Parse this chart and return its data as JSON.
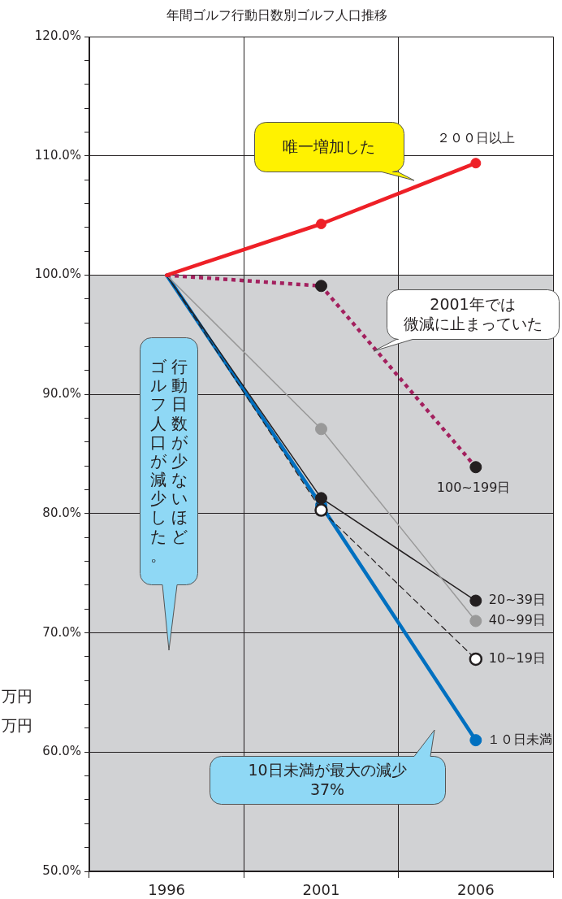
{
  "chart_data": {
    "type": "line",
    "title": "年間ゴルフ行動日数別ゴルフ人口推移",
    "categories": [
      "1996",
      "2001",
      "2006"
    ],
    "series": [
      {
        "name": "２００日以上",
        "color": "#ee2027",
        "values": [
          100,
          104.3,
          109.4
        ]
      },
      {
        "name": "100~199日",
        "color": "#a3205e",
        "values": [
          100,
          99.1,
          83.9
        ],
        "line_style": "dotted"
      },
      {
        "name": "40~99日",
        "color": "#999999",
        "values": [
          100,
          87.1,
          71.0
        ]
      },
      {
        "name": "20~39日",
        "color": "#231f20",
        "values": [
          100,
          81.3,
          72.7
        ]
      },
      {
        "name": "10~19日",
        "color": "#231f20",
        "values": [
          100,
          80.3,
          67.8
        ],
        "line_style": "dashed"
      },
      {
        "name": "１０日未満",
        "color": "#0070c0",
        "values": [
          100,
          80.7,
          61.0
        ]
      }
    ],
    "ylim": [
      50,
      120
    ],
    "yticks": [
      {
        "value": 50,
        "label": "50.0%"
      },
      {
        "value": 52,
        "label": null
      },
      {
        "value": 54,
        "label": null
      },
      {
        "value": 56,
        "label": null
      },
      {
        "value": 58,
        "label": null
      },
      {
        "value": 60,
        "label": "60.0%"
      },
      {
        "value": 62,
        "label": null
      },
      {
        "value": 64,
        "label": null
      },
      {
        "value": 66,
        "label": null
      },
      {
        "value": 68,
        "label": null
      },
      {
        "value": 70,
        "label": "70.0%"
      },
      {
        "value": 72,
        "label": null
      },
      {
        "value": 74,
        "label": null
      },
      {
        "value": 76,
        "label": null
      },
      {
        "value": 78,
        "label": null
      },
      {
        "value": 80,
        "label": "80.0%"
      },
      {
        "value": 82,
        "label": null
      },
      {
        "value": 84,
        "label": null
      },
      {
        "value": 86,
        "label": null
      },
      {
        "value": 88,
        "label": null
      },
      {
        "value": 90,
        "label": "90.0%"
      },
      {
        "value": 92,
        "label": null
      },
      {
        "value": 94,
        "label": null
      },
      {
        "value": 96,
        "label": null
      },
      {
        "value": 98,
        "label": null
      },
      {
        "value": 100,
        "label": "100.0%"
      },
      {
        "value": 102,
        "label": null
      },
      {
        "value": 104,
        "label": null
      },
      {
        "value": 106,
        "label": null
      },
      {
        "value": 108,
        "label": null
      },
      {
        "value": 110,
        "label": "110.0%"
      },
      {
        "value": 112,
        "label": null
      },
      {
        "value": 114,
        "label": null
      },
      {
        "value": 116,
        "label": null
      },
      {
        "value": 118,
        "label": null
      },
      {
        "value": 120,
        "label": "120.0%"
      }
    ],
    "bands": [
      {
        "axis": "y",
        "from": 50,
        "to": 100,
        "color": "#d1d2d4"
      }
    ],
    "annotations": [
      "唯一増加した",
      "2001年では微減に止まっていた",
      "行動日数が少ないほどゴルフ人口が減少した。",
      "10日未満が最大の減少37%",
      "万円",
      "万円"
    ],
    "grid": true,
    "legend": false,
    "marker": "circle"
  }
}
